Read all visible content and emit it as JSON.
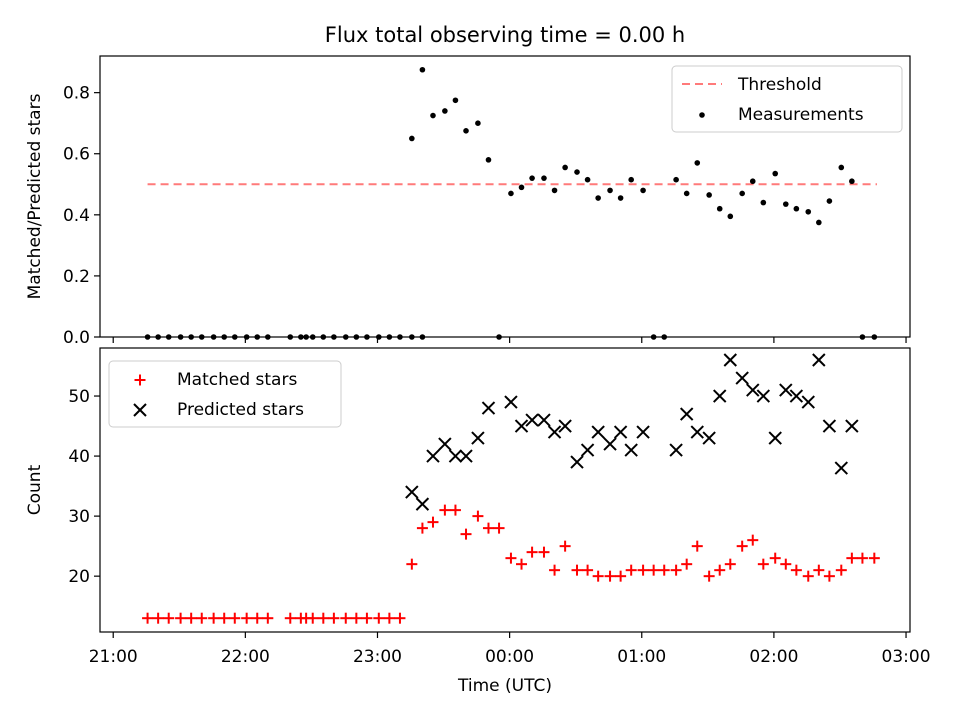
{
  "title": "Flux total observing time = 0.00 h",
  "colors": {
    "threshold": "#ff7a7a",
    "measurements": "#000000",
    "matched": "#ff0000",
    "predicted": "#000000"
  },
  "chart_data": [
    {
      "type": "scatter",
      "title": "Flux total observing time = 0.00 h",
      "xlabel": "",
      "ylabel": "Matched/Predicted stars",
      "x_unit": "hours since 21:00 UTC",
      "xlim": [
        -0.1,
        6.03
      ],
      "ylim": [
        0.0,
        0.92
      ],
      "xticks": [
        0,
        1,
        2,
        3,
        4,
        5,
        6
      ],
      "yticks": [
        0.0,
        0.2,
        0.4,
        0.6,
        0.8
      ],
      "ytick_labels": [
        "0.0",
        "0.2",
        "0.4",
        "0.6",
        "0.8"
      ],
      "legend": {
        "position": "upper right",
        "entries": [
          "Threshold",
          "Measurements"
        ]
      },
      "threshold": {
        "name": "Threshold",
        "value": 0.5,
        "x_range": [
          0.26,
          5.78
        ],
        "style": "dashed"
      },
      "series": [
        {
          "name": "Measurements",
          "marker": "dot",
          "points": [
            [
              0.26,
              0
            ],
            [
              0.34,
              0
            ],
            [
              0.42,
              0
            ],
            [
              0.51,
              0
            ],
            [
              0.59,
              0
            ],
            [
              0.67,
              0
            ],
            [
              0.76,
              0
            ],
            [
              0.84,
              0
            ],
            [
              0.92,
              0
            ],
            [
              1.01,
              0
            ],
            [
              1.09,
              0
            ],
            [
              1.17,
              0
            ],
            [
              1.34,
              0
            ],
            [
              1.42,
              0
            ],
            [
              1.46,
              0
            ],
            [
              1.51,
              0
            ],
            [
              1.59,
              0
            ],
            [
              1.67,
              0
            ],
            [
              1.76,
              0
            ],
            [
              1.84,
              0
            ],
            [
              1.92,
              0
            ],
            [
              2.01,
              0
            ],
            [
              2.09,
              0
            ],
            [
              2.17,
              0
            ],
            [
              2.26,
              0
            ],
            [
              2.34,
              0
            ],
            [
              2.26,
              0.65
            ],
            [
              2.34,
              0.875
            ],
            [
              2.42,
              0.725
            ],
            [
              2.51,
              0.74
            ],
            [
              2.59,
              0.775
            ],
            [
              2.67,
              0.675
            ],
            [
              2.76,
              0.7
            ],
            [
              2.84,
              0.58
            ],
            [
              2.92,
              0
            ],
            [
              3.01,
              0.47
            ],
            [
              3.09,
              0.49
            ],
            [
              3.17,
              0.52
            ],
            [
              3.26,
              0.52
            ],
            [
              3.34,
              0.48
            ],
            [
              3.42,
              0.555
            ],
            [
              3.51,
              0.54
            ],
            [
              3.59,
              0.515
            ],
            [
              3.67,
              0.455
            ],
            [
              3.76,
              0.48
            ],
            [
              3.84,
              0.455
            ],
            [
              3.92,
              0.515
            ],
            [
              4.01,
              0.48
            ],
            [
              4.09,
              0
            ],
            [
              4.17,
              0
            ],
            [
              4.26,
              0.515
            ],
            [
              4.34,
              0.47
            ],
            [
              4.42,
              0.57
            ],
            [
              4.51,
              0.465
            ],
            [
              4.59,
              0.42
            ],
            [
              4.67,
              0.395
            ],
            [
              4.76,
              0.47
            ],
            [
              4.84,
              0.51
            ],
            [
              4.92,
              0.44
            ],
            [
              5.01,
              0.535
            ],
            [
              5.09,
              0.435
            ],
            [
              5.17,
              0.42
            ],
            [
              5.26,
              0.41
            ],
            [
              5.34,
              0.375
            ],
            [
              5.42,
              0.445
            ],
            [
              5.51,
              0.555
            ],
            [
              5.59,
              0.51
            ],
            [
              5.67,
              0
            ],
            [
              5.76,
              0
            ]
          ]
        }
      ]
    },
    {
      "type": "scatter",
      "xlabel": "Time (UTC)",
      "ylabel": "Count",
      "x_unit": "hours since 21:00 UTC",
      "xlim": [
        -0.1,
        6.03
      ],
      "ylim": [
        10.7,
        58.0
      ],
      "xticks": [
        0,
        1,
        2,
        3,
        4,
        5,
        6
      ],
      "xtick_labels": [
        "21:00",
        "22:00",
        "23:00",
        "00:00",
        "01:00",
        "02:00",
        "03:00"
      ],
      "yticks": [
        20,
        30,
        40,
        50
      ],
      "ytick_labels": [
        "20",
        "30",
        "40",
        "50"
      ],
      "legend": {
        "position": "upper left",
        "entries": [
          "Matched stars",
          "Predicted stars"
        ]
      },
      "series": [
        {
          "name": "Matched stars",
          "marker": "plus",
          "points": [
            [
              0.26,
              13
            ],
            [
              0.34,
              13
            ],
            [
              0.42,
              13
            ],
            [
              0.51,
              13
            ],
            [
              0.59,
              13
            ],
            [
              0.67,
              13
            ],
            [
              0.76,
              13
            ],
            [
              0.84,
              13
            ],
            [
              0.92,
              13
            ],
            [
              1.01,
              13
            ],
            [
              1.09,
              13
            ],
            [
              1.17,
              13
            ],
            [
              1.34,
              13
            ],
            [
              1.42,
              13
            ],
            [
              1.46,
              13
            ],
            [
              1.51,
              13
            ],
            [
              1.59,
              13
            ],
            [
              1.67,
              13
            ],
            [
              1.76,
              13
            ],
            [
              1.84,
              13
            ],
            [
              1.92,
              13
            ],
            [
              2.01,
              13
            ],
            [
              2.09,
              13
            ],
            [
              2.17,
              13
            ],
            [
              2.26,
              22
            ],
            [
              2.34,
              28
            ],
            [
              2.42,
              29
            ],
            [
              2.51,
              31
            ],
            [
              2.59,
              31
            ],
            [
              2.67,
              27
            ],
            [
              2.76,
              30
            ],
            [
              2.84,
              28
            ],
            [
              2.92,
              28
            ],
            [
              3.01,
              23
            ],
            [
              3.09,
              22
            ],
            [
              3.17,
              24
            ],
            [
              3.26,
              24
            ],
            [
              3.34,
              21
            ],
            [
              3.42,
              25
            ],
            [
              3.51,
              21
            ],
            [
              3.59,
              21
            ],
            [
              3.67,
              20
            ],
            [
              3.76,
              20
            ],
            [
              3.84,
              20
            ],
            [
              3.92,
              21
            ],
            [
              4.01,
              21
            ],
            [
              4.09,
              21
            ],
            [
              4.17,
              21
            ],
            [
              4.26,
              21
            ],
            [
              4.34,
              22
            ],
            [
              4.42,
              25
            ],
            [
              4.51,
              20
            ],
            [
              4.59,
              21
            ],
            [
              4.67,
              22
            ],
            [
              4.76,
              25
            ],
            [
              4.84,
              26
            ],
            [
              4.92,
              22
            ],
            [
              5.01,
              23
            ],
            [
              5.09,
              22
            ],
            [
              5.17,
              21
            ],
            [
              5.26,
              20
            ],
            [
              5.34,
              21
            ],
            [
              5.42,
              20
            ],
            [
              5.51,
              21
            ],
            [
              5.59,
              23
            ],
            [
              5.67,
              23
            ],
            [
              5.76,
              23
            ]
          ]
        },
        {
          "name": "Predicted stars",
          "marker": "x",
          "points": [
            [
              2.26,
              34
            ],
            [
              2.34,
              32
            ],
            [
              2.42,
              40
            ],
            [
              2.51,
              42
            ],
            [
              2.59,
              40
            ],
            [
              2.67,
              40
            ],
            [
              2.76,
              43
            ],
            [
              2.84,
              48
            ],
            [
              3.01,
              49
            ],
            [
              3.09,
              45
            ],
            [
              3.17,
              46
            ],
            [
              3.26,
              46
            ],
            [
              3.34,
              44
            ],
            [
              3.42,
              45
            ],
            [
              3.51,
              39
            ],
            [
              3.59,
              41
            ],
            [
              3.67,
              44
            ],
            [
              3.76,
              42
            ],
            [
              3.84,
              44
            ],
            [
              3.92,
              41
            ],
            [
              4.01,
              44
            ],
            [
              4.26,
              41
            ],
            [
              4.34,
              47
            ],
            [
              4.42,
              44
            ],
            [
              4.51,
              43
            ],
            [
              4.59,
              50
            ],
            [
              4.67,
              56
            ],
            [
              4.76,
              53
            ],
            [
              4.84,
              51
            ],
            [
              4.92,
              50
            ],
            [
              5.01,
              43
            ],
            [
              5.09,
              51
            ],
            [
              5.17,
              50
            ],
            [
              5.26,
              49
            ],
            [
              5.34,
              56
            ],
            [
              5.42,
              45
            ],
            [
              5.51,
              38
            ],
            [
              5.59,
              45
            ]
          ]
        }
      ]
    }
  ]
}
